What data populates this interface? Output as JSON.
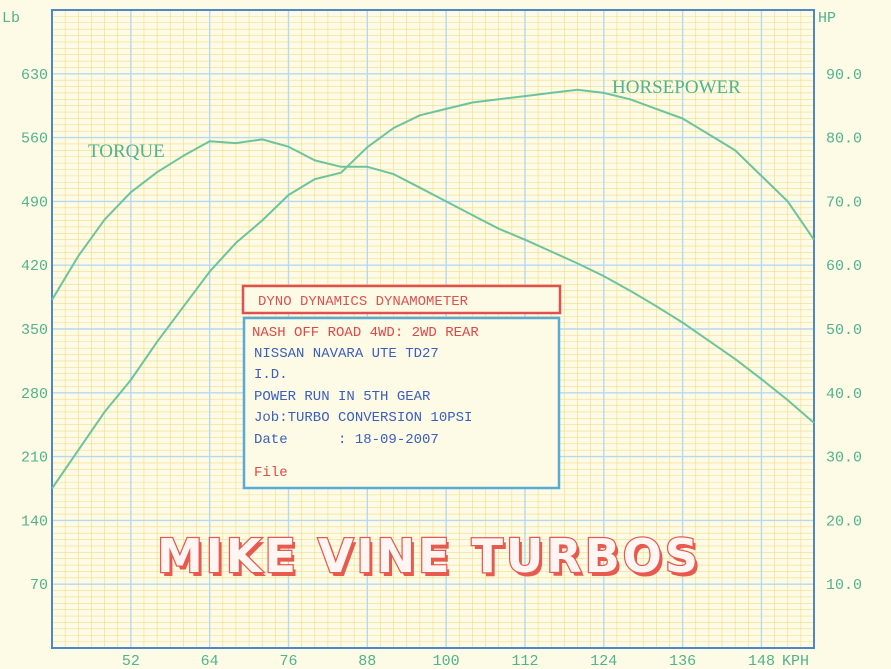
{
  "colors": {
    "background": "#fdfbe6",
    "grid_minor": "#f2dc86",
    "grid_major": "#b8d8ec",
    "frame": "#4f86c8",
    "axis_text": "#4fb38e",
    "curve": "#6cc49e",
    "info_title": "#e05050",
    "info_box_border": "#5aaad8",
    "info_text_blue": "#3a5fbf",
    "info_text_red": "#e04848",
    "brand": "#e85a4f"
  },
  "chart_data": {
    "type": "line",
    "y_left_unit": "Lb",
    "y_right_unit": "HP",
    "x_unit": "KPH",
    "xlim": [
      40,
      156
    ],
    "ylim_left": [
      0,
      700
    ],
    "ylim_right": [
      0,
      100
    ],
    "x_ticks": [
      "52",
      "64",
      "76",
      "88",
      "100",
      "112",
      "124",
      "136",
      "148"
    ],
    "y_left_ticks": [
      "70",
      "140",
      "210",
      "280",
      "350",
      "420",
      "490",
      "560",
      "630"
    ],
    "y_right_ticks": [
      "10.0",
      "20.0",
      "30.0",
      "40.0",
      "50.0",
      "60.0",
      "70.0",
      "80.0",
      "90.0"
    ],
    "series": [
      {
        "name": "TORQUE",
        "axis": "left",
        "x": [
          40,
          44,
          48,
          52,
          56,
          60,
          64,
          68,
          72,
          76,
          80,
          84,
          88,
          92,
          96,
          100,
          104,
          108,
          112,
          116,
          120,
          124,
          128,
          132,
          136,
          140,
          144,
          148,
          152,
          156
        ],
        "y": [
          382,
          430,
          470,
          500,
          522,
          540,
          556,
          554,
          558,
          550,
          535,
          528,
          528,
          520,
          505,
          490,
          475,
          460,
          448,
          435,
          422,
          408,
          392,
          375,
          357,
          337,
          317,
          295,
          272,
          247
        ]
      },
      {
        "name": "HORSEPOWER",
        "axis": "right",
        "x": [
          40,
          44,
          48,
          52,
          56,
          60,
          64,
          68,
          72,
          76,
          80,
          84,
          88,
          92,
          96,
          100,
          104,
          108,
          112,
          116,
          120,
          124,
          128,
          132,
          136,
          140,
          144,
          148,
          152,
          156
        ],
        "y": [
          25,
          31,
          37,
          42,
          48,
          53.5,
          59,
          63.5,
          67,
          71,
          73.5,
          74.5,
          78.5,
          81.5,
          83.5,
          84.5,
          85.5,
          86,
          86.5,
          87,
          87.5,
          87,
          86,
          84.5,
          83,
          80.5,
          78,
          74,
          70,
          64
        ]
      }
    ],
    "annotations": [
      "TORQUE",
      "HORSEPOWER"
    ]
  },
  "info_box": {
    "title": "DYNO DYNAMICS DYNAMOMETER",
    "lines": [
      "NASH OFF ROAD 4WD: 2WD REAR",
      "NISSAN NAVARA UTE TD27",
      "I.D.",
      "POWER RUN IN 5TH GEAR",
      "Job:TURBO CONVERSION 10PSI",
      "Date      : 18-09-2007",
      "File"
    ]
  },
  "brand": "MIKE VINE TURBOS"
}
